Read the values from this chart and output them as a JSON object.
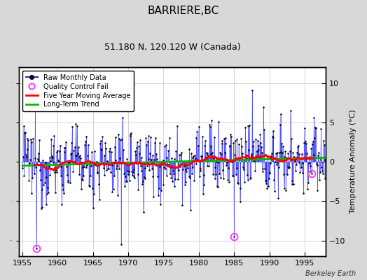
{
  "title": "BARRIERE,BC",
  "subtitle": "51.180 N, 120.120 W (Canada)",
  "ylabel": "Temperature Anomaly (°C)",
  "xlim": [
    1954.5,
    1998.0
  ],
  "ylim": [
    -12,
    12
  ],
  "yticks": [
    -10,
    -5,
    0,
    5,
    10
  ],
  "xticks": [
    1955,
    1960,
    1965,
    1970,
    1975,
    1980,
    1985,
    1990,
    1995
  ],
  "fig_bg_color": "#d8d8d8",
  "plot_bg_color": "#ffffff",
  "line_color": "#2222ff",
  "fill_color": "#aaaaff",
  "marker_color": "#000000",
  "qc_fail_color": "#ff44ff",
  "moving_avg_color": "#ff0000",
  "trend_color": "#00bb00",
  "watermark": "Berkeley Earth",
  "title_fontsize": 11,
  "subtitle_fontsize": 9,
  "tick_fontsize": 8,
  "ylabel_fontsize": 8,
  "seed": 12345
}
